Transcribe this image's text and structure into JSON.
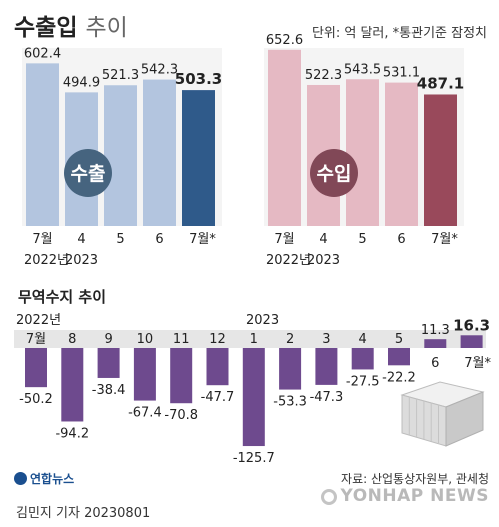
{
  "header": {
    "title_bold": "수출입",
    "title_light": "추이",
    "unit": "단위: 억 달러, *통관기준 잠정치"
  },
  "colors": {
    "export_bar": "#b3c5df",
    "export_last": "#2f5a8a",
    "export_badge": "#46647f",
    "import_bar": "#e5b9c3",
    "import_last": "#99495b",
    "import_badge": "#814857",
    "balance_bar": "#6e4a8e",
    "grid_band": "#e6e6e6"
  },
  "chart_data": [
    {
      "type": "bar",
      "name": "export",
      "badge": "수출",
      "categories": [
        "7월",
        "4",
        "5",
        "6",
        "7월*"
      ],
      "year_labels": [
        "2022년",
        "2023",
        "",
        "",
        ""
      ],
      "values": [
        602.4,
        494.9,
        521.3,
        542.3,
        503.3
      ],
      "value_labels": [
        "602.4",
        "494.9",
        "521.3",
        "542.3",
        "503.3"
      ]
    },
    {
      "type": "bar",
      "name": "import",
      "badge": "수입",
      "categories": [
        "7월",
        "4",
        "5",
        "6",
        "7월*"
      ],
      "year_labels": [
        "2022년",
        "2023",
        "",
        "",
        ""
      ],
      "values": [
        652.6,
        522.3,
        543.5,
        531.1,
        487.1
      ],
      "value_labels": [
        "652.6",
        "522.3",
        "543.5",
        "531.1",
        "487.1"
      ]
    },
    {
      "type": "bar",
      "name": "trade-balance",
      "title": "무역수지 추이",
      "year_labels": [
        "2022년",
        "2023"
      ],
      "categories": [
        "7월",
        "8",
        "9",
        "10",
        "11",
        "12",
        "1",
        "2",
        "3",
        "4",
        "5",
        "6",
        "7월*"
      ],
      "values": [
        -50.2,
        -94.2,
        -38.4,
        -67.4,
        -70.8,
        -47.7,
        -125.7,
        -53.3,
        -47.3,
        -27.5,
        -22.2,
        11.3,
        16.3
      ],
      "value_labels": [
        "-50.2",
        "-94.2",
        "-38.4",
        "-67.4",
        "-70.8",
        "-47.7",
        "-125.7",
        "-53.3",
        "-47.3",
        "-27.5",
        "-22.2",
        "11.3",
        "16.3"
      ]
    }
  ],
  "footer": {
    "source": "자료: 산업통상자원부, 관세청",
    "credit": "김민지 기자  20230801",
    "logo": "연합뉴스",
    "watermark": "YONHAP NEWS"
  }
}
